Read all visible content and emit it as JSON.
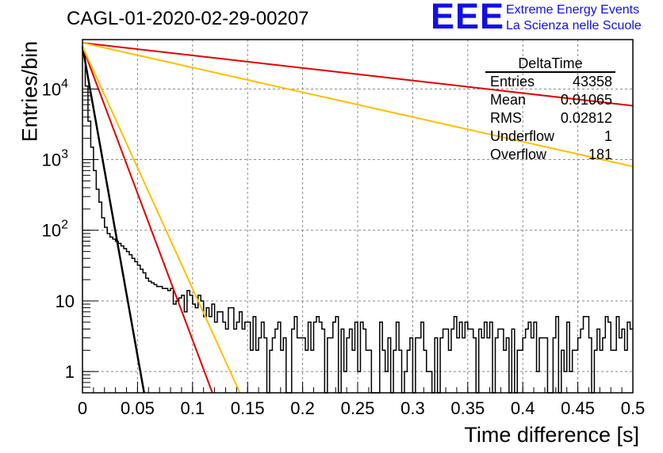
{
  "title": "CAGL-01-2020-02-29-00207",
  "logo": {
    "mark": "EEE",
    "line1": "Extreme Energy Events",
    "line2": "La Scienza nelle Scuole",
    "color": "#1010e6"
  },
  "stats_box": {
    "name": "DeltaTime",
    "rows": [
      {
        "label": "Entries",
        "value": "43358"
      },
      {
        "label": "Mean",
        "value": "0.01065"
      },
      {
        "label": "RMS",
        "value": "0.02812"
      },
      {
        "label": "Underflow",
        "value": "1"
      },
      {
        "label": "Overflow",
        "value": "181"
      }
    ]
  },
  "chart_data": {
    "type": "line",
    "xlabel": "Time difference [s]",
    "ylabel": "Entries/bin",
    "xlim": [
      0,
      0.5
    ],
    "ylim": [
      0.5,
      50000
    ],
    "yscale": "log",
    "grid": true,
    "x_ticks": [
      "0",
      "0.05",
      "0.1",
      "0.15",
      "0.2",
      "0.25",
      "0.3",
      "0.35",
      "0.4",
      "0.45",
      "0.5"
    ],
    "y_ticks": [
      {
        "value": 1,
        "label": "1"
      },
      {
        "value": 10,
        "label": "10"
      },
      {
        "value": 100,
        "label": "10",
        "exp": "2"
      },
      {
        "value": 1000,
        "label": "10",
        "exp": "3"
      },
      {
        "value": 10000,
        "label": "10",
        "exp": "4"
      }
    ],
    "histogram": {
      "bin_width": 0.0025,
      "color": "#000000",
      "values": [
        33000,
        11000,
        3500,
        1500,
        700,
        380,
        250,
        150,
        110,
        90,
        80,
        75,
        70,
        65,
        60,
        55,
        50,
        45,
        40,
        36,
        32,
        28,
        25,
        21,
        19,
        18,
        17,
        16,
        16,
        15,
        15,
        14,
        14,
        13,
        13,
        12,
        12,
        11,
        11,
        11,
        10,
        10,
        9.5,
        9,
        9,
        8.5,
        8,
        8,
        7.5,
        7,
        7,
        7,
        6,
        6,
        6,
        5.5,
        5,
        5,
        5,
        5,
        4.5,
        4.5,
        4.5,
        4,
        4,
        4,
        4,
        3.5,
        3.5,
        3.5,
        3,
        3,
        3,
        3,
        3,
        2.5,
        2.5,
        2.5,
        2.5,
        2.5,
        2.5,
        2,
        2,
        2,
        2,
        2,
        2,
        2,
        2,
        2,
        1.5,
        1.5,
        1.5,
        1.5,
        1.5,
        1.5,
        1.5,
        1.5,
        1.5,
        1.5,
        1.5,
        1.5,
        1.5,
        1.5,
        1.5,
        1.5,
        1.5,
        1.5,
        1.5,
        1.5,
        1.5,
        1.5,
        1.5,
        1.5,
        1.5,
        1.5,
        1.5,
        1.5,
        1.5,
        1.5,
        1.5,
        1.5,
        1.5,
        1.5,
        1.5,
        1.5,
        1.5,
        1.5,
        1.5,
        1.5,
        1.5,
        1.5,
        1.5,
        1.5,
        1.5,
        1.5,
        1.5,
        1.5,
        1.5,
        1.5,
        1.5,
        1.5,
        1.5,
        1.5,
        1.5,
        1.5,
        1.5,
        1.5,
        1.5,
        1.5,
        1.5,
        1.5,
        1.5,
        1.5,
        1.5,
        1.5,
        1.5,
        1.5,
        1.5,
        1.5,
        1.5,
        1.5,
        1.5,
        1.5,
        1.5,
        1.5,
        1.5,
        1.5,
        1.5,
        1.5,
        1.5,
        1.5,
        1.5,
        1.5,
        1.5,
        1.5,
        1.5,
        1.5,
        1.5,
        1.5,
        1.5,
        1.5,
        1.5,
        1.5,
        1.5,
        1.5,
        1.5,
        1.5,
        1.5,
        1.5,
        1.5,
        1.5,
        1.5,
        1.5,
        1.5,
        1.5,
        1.5,
        1.5,
        1.5,
        1.5
      ],
      "values_note": "see script"
    },
    "fits": [
      {
        "color": "#000000",
        "points": [
          [
            0,
            40000
          ],
          [
            0.056,
            0.5
          ]
        ]
      },
      {
        "color": "#e00000",
        "points": [
          [
            0,
            40000
          ],
          [
            0.118,
            0.5
          ]
        ]
      },
      {
        "color": "#ffbf00",
        "points": [
          [
            0,
            40000
          ],
          [
            0.143,
            0.5
          ]
        ]
      },
      {
        "color": "#e00000",
        "points": [
          [
            0,
            45000
          ],
          [
            0.5,
            5800
          ]
        ]
      },
      {
        "color": "#ffbf00",
        "points": [
          [
            0,
            45000
          ],
          [
            0.5,
            800
          ]
        ]
      }
    ]
  }
}
